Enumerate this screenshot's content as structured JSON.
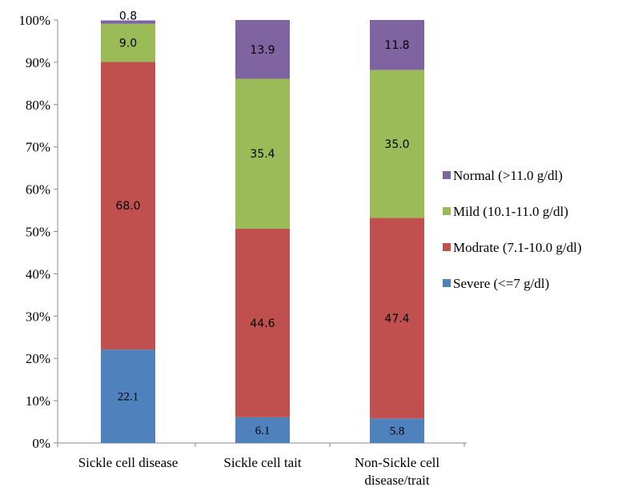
{
  "chart_data": {
    "type": "bar",
    "stacked": true,
    "percent": true,
    "categories": [
      "Sickle cell disease",
      "Sickle cell tait",
      "Non-Sickle cell disease/trait"
    ],
    "category_lines": [
      [
        "Sickle cell disease"
      ],
      [
        "Sickle cell tait"
      ],
      [
        "Non-Sickle cell",
        "disease/trait"
      ]
    ],
    "series": [
      {
        "name": "Severe (<=7 g/dl)",
        "color": "#4f81bd",
        "values": [
          22.1,
          6.1,
          5.8
        ]
      },
      {
        "name": "Modrate (7.1-10.0 g/dl)",
        "color": "#c0504d",
        "values": [
          68.0,
          44.6,
          47.4
        ]
      },
      {
        "name": "Mild (10.1-11.0 g/dl)",
        "color": "#9bbb59",
        "values": [
          9.0,
          35.4,
          35.0
        ]
      },
      {
        "name": "Normal (>11.0 g/dl)",
        "color": "#8064a2",
        "values": [
          0.8,
          13.9,
          11.8
        ]
      }
    ],
    "value_labels": [
      [
        "22.1",
        "6.1",
        "5.8"
      ],
      [
        "68.0",
        "44.6",
        "47.4"
      ],
      [
        "9.0",
        "35.4",
        "35.0"
      ],
      [
        "0.8",
        "13.9",
        "11.8"
      ]
    ],
    "yticks": [
      "0%",
      "10%",
      "20%",
      "30%",
      "40%",
      "50%",
      "60%",
      "70%",
      "80%",
      "90%",
      "100%"
    ],
    "ylim": [
      0,
      100
    ],
    "grid": false,
    "legend_position": "right",
    "title": "",
    "xlabel": "",
    "ylabel": ""
  }
}
